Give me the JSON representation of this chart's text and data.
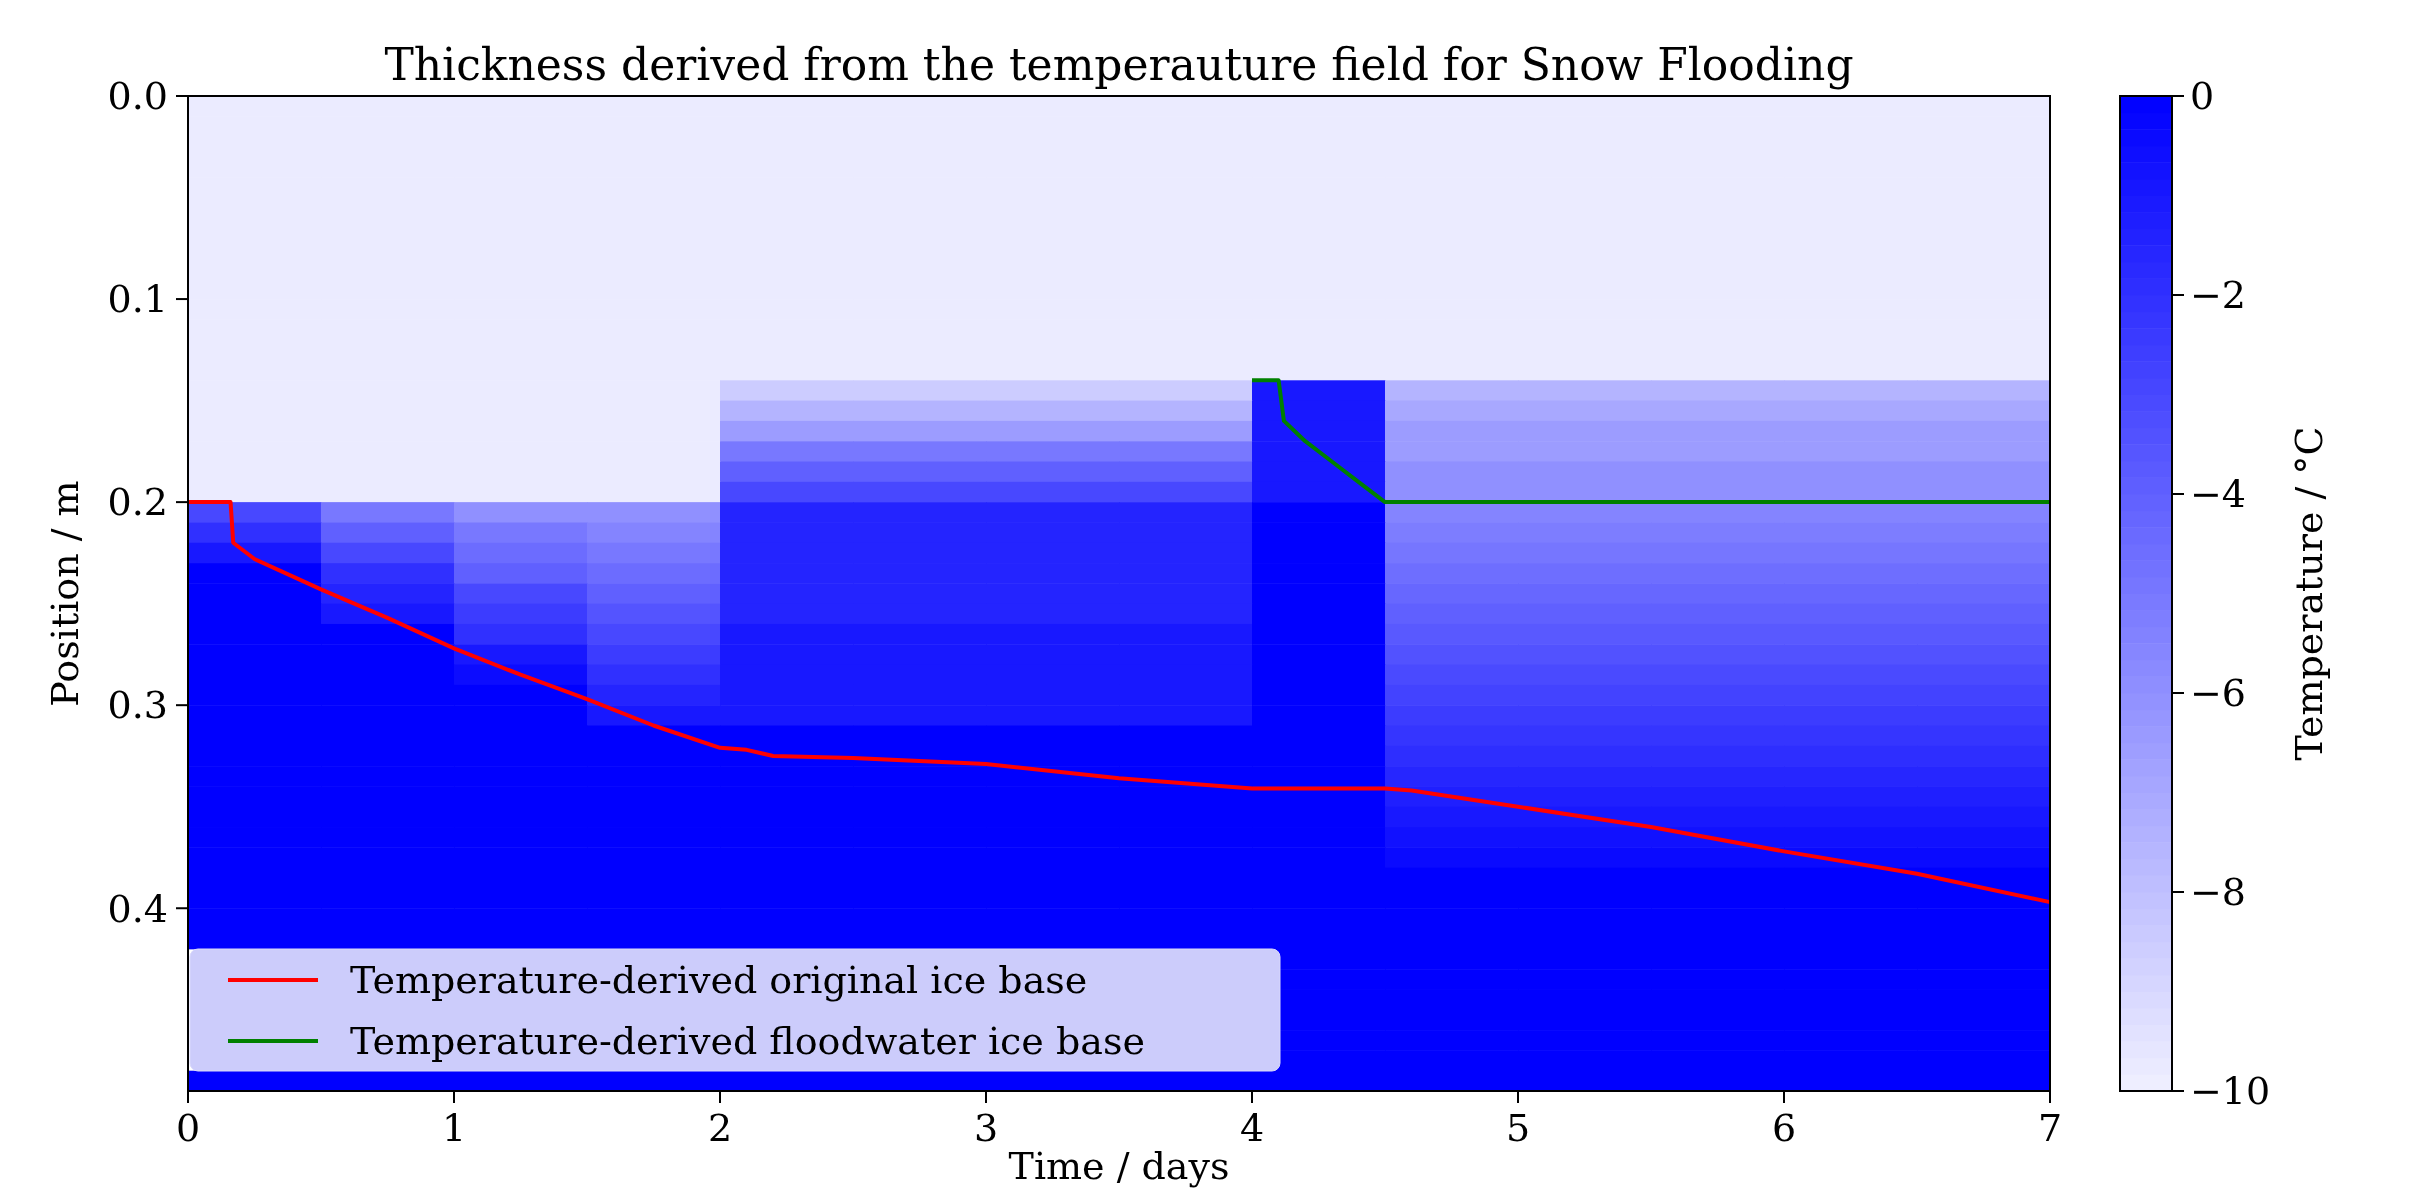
{
  "chart_data": {
    "type": "heatmap",
    "title": "Thickness derived from the temperauture field for Snow Flooding",
    "xlabel": "Time / days",
    "ylabel": "Position / m",
    "clabel": "Temperature / °C",
    "x": [
      0.25,
      0.75,
      1.25,
      1.75,
      2.25,
      2.75,
      3.25,
      3.75,
      4.25,
      4.75,
      5.25,
      5.75,
      6.25,
      6.75
    ],
    "xlim": [
      0,
      7
    ],
    "xticks": [
      0,
      1,
      2,
      3,
      4,
      5,
      6,
      7
    ],
    "ylim": [
      0.49,
      0
    ],
    "yticks": [
      {
        "value": 0,
        "label": "0.0"
      },
      0.1,
      0.2,
      0.3,
      0.4
    ],
    "clim": [
      -10,
      0
    ],
    "cticks": [
      {
        "value": 0,
        "label": "0"
      },
      {
        "value": -2,
        "label": "−2"
      },
      {
        "value": -4,
        "label": "−4"
      },
      {
        "value": -6,
        "label": "−6"
      },
      {
        "value": -8,
        "label": "−8"
      },
      {
        "value": -10,
        "label": "−10"
      }
    ],
    "cells": [
      [
        -9.8,
        -9.8,
        -9.8,
        -9.8,
        -9.8,
        -9.8,
        -9.8,
        -9.8,
        -9.8,
        -9.8,
        -9.8,
        -9.8,
        -9.8,
        -9.8
      ],
      [
        -9.8,
        -9.8,
        -9.8,
        -9.8,
        -9.8,
        -9.8,
        -9.8,
        -9.8,
        -9.8,
        -9.8,
        -9.8,
        -9.8,
        -9.8,
        -9.8
      ],
      [
        -9.8,
        -9.8,
        -9.8,
        -9.8,
        -9.8,
        -9.8,
        -9.8,
        -9.8,
        -9.8,
        -9.8,
        -9.8,
        -9.8,
        -9.8,
        -9.8
      ],
      [
        -9.8,
        -9.8,
        -9.8,
        -9.8,
        -9.8,
        -9.8,
        -9.8,
        -9.8,
        -9.8,
        -9.8,
        -9.8,
        -9.8,
        -9.8,
        -9.8
      ],
      [
        -9.8,
        -9.8,
        -9.8,
        -9.8,
        -9.8,
        -9.8,
        -9.8,
        -9.8,
        -9.8,
        -9.8,
        -9.8,
        -9.8,
        -9.8,
        -9.8
      ],
      [
        -9.8,
        -9.8,
        -9.8,
        -9.8,
        -9.8,
        -9.8,
        -9.8,
        -9.8,
        -9.8,
        -9.8,
        -9.8,
        -9.8,
        -9.8,
        -9.8
      ],
      [
        -9.8,
        -9.8,
        -9.8,
        -9.8,
        -9.8,
        -9.8,
        -9.8,
        -9.8,
        -9.8,
        -9.8,
        -9.8,
        -9.8,
        -9.8,
        -9.8
      ],
      [
        -9.8,
        -9.8,
        -9.8,
        -9.8,
        -9.8,
        -9.8,
        -9.8,
        -9.8,
        -9.8,
        -9.8,
        -9.8,
        -9.8,
        -9.8,
        -9.8
      ],
      [
        -9.8,
        -9.8,
        -9.8,
        -9.8,
        -9.8,
        -9.8,
        -9.8,
        -9.8,
        -9.8,
        -9.8,
        -9.8,
        -9.8,
        -9.8,
        -9.8
      ],
      [
        -9.8,
        -9.8,
        -9.8,
        -9.8,
        -9.8,
        -9.8,
        -9.8,
        -9.8,
        -9.8,
        -9.8,
        -9.8,
        -9.8,
        -9.8,
        -9.8
      ],
      [
        -9.8,
        -9.8,
        -9.8,
        -9.8,
        -9.8,
        -9.8,
        -9.8,
        -9.8,
        -9.8,
        -9.8,
        -9.8,
        -9.8,
        -9.8,
        -9.8
      ],
      [
        -9.8,
        -9.8,
        -9.8,
        -9.8,
        -9.8,
        -9.8,
        -9.8,
        -9.8,
        -9.8,
        -9.8,
        -9.8,
        -9.8,
        -9.8,
        -9.8
      ],
      [
        -9.8,
        -9.8,
        -9.8,
        -9.8,
        -9.8,
        -9.8,
        -9.8,
        -9.8,
        -9.8,
        -9.8,
        -9.8,
        -9.8,
        -9.8,
        -9.8
      ],
      [
        -9.8,
        -9.8,
        -9.8,
        -9.8,
        -9.8,
        -9.8,
        -9.8,
        -9.8,
        -9.8,
        -9.8,
        -9.8,
        -9.8,
        -9.8,
        -9.8
      ],
      [
        -9.8,
        -9.8,
        -9.8,
        -9.8,
        -8.5,
        -8.5,
        -8.5,
        -8.5,
        -1,
        -7.5,
        -7.5,
        -7.5,
        -7.5,
        -7.5
      ],
      [
        -9.8,
        -9.8,
        -9.8,
        -9.8,
        -7.5,
        -7.5,
        -7.5,
        -7.5,
        -1,
        -7,
        -7,
        -7,
        -7,
        -7
      ],
      [
        -9.8,
        -9.8,
        -9.8,
        -9.8,
        -6.5,
        -6.5,
        -6.5,
        -6.5,
        -1,
        -6.5,
        -6.5,
        -6.5,
        -6.5,
        -6.5
      ],
      [
        -9.8,
        -9.8,
        -9.8,
        -9.8,
        -5,
        -5,
        -5,
        -5,
        -1,
        -6.5,
        -6.5,
        -6.5,
        -6.5,
        -6.5
      ],
      [
        -9.8,
        -9.8,
        -9.8,
        -9.8,
        -4,
        -4,
        -4,
        -4,
        -1,
        -6,
        -6,
        -6,
        -6,
        -6
      ],
      [
        -9.8,
        -9.8,
        -9.8,
        -9.8,
        -3,
        -3,
        -3,
        -3,
        -1,
        -6,
        -6,
        -6,
        -6,
        -6
      ],
      [
        -3,
        -5,
        -6,
        -6,
        -1.5,
        -1.5,
        -1.5,
        -1.5,
        0,
        -5.5,
        -5.5,
        -5.5,
        -5.5,
        -5.5
      ],
      [
        -2,
        -4,
        -5,
        -5.5,
        -1.5,
        -1.5,
        -1.5,
        -1.5,
        0,
        -5.2,
        -5.2,
        -5.2,
        -5.2,
        -5.2
      ],
      [
        -1,
        -3,
        -4.5,
        -5,
        -1.5,
        -1.5,
        -1.5,
        -1.5,
        0,
        -4.9,
        -4.9,
        -4.9,
        -4.9,
        -4.9
      ],
      [
        0,
        -2,
        -4,
        -4.5,
        -1.5,
        -1.5,
        -1.5,
        -1.5,
        0,
        -4.6,
        -4.6,
        -4.6,
        -4.6,
        -4.6
      ],
      [
        0,
        -1.5,
        -3,
        -4,
        -1.5,
        -1.5,
        -1.5,
        -1.5,
        0,
        -4.3,
        -4.3,
        -4.3,
        -4.3,
        -4.3
      ],
      [
        0,
        -1,
        -2.5,
        -3.5,
        -1.5,
        -1.5,
        -1.5,
        -1.5,
        0,
        -4,
        -4,
        -4,
        -4,
        -4
      ],
      [
        0,
        0,
        -2,
        -3,
        -1,
        -1,
        -1,
        -1,
        0,
        -3.7,
        -3.7,
        -3.7,
        -3.7,
        -3.7
      ],
      [
        0,
        0,
        -1,
        -2.5,
        -1,
        -1,
        -1,
        -1,
        0,
        -3.4,
        -3.4,
        -3.4,
        -3.4,
        -3.4
      ],
      [
        0,
        0,
        -0.5,
        -2,
        -1,
        -1,
        -1,
        -1,
        0,
        -3.1,
        -3.1,
        -3.1,
        -3.1,
        -3.1
      ],
      [
        0,
        0,
        0,
        -1.5,
        -1,
        -1,
        -1,
        -1,
        0,
        -2.8,
        -2.8,
        -2.8,
        -2.8,
        -2.8
      ],
      [
        0,
        0,
        0,
        -1,
        -1,
        -1,
        -1,
        -1,
        0,
        -2.5,
        -2.5,
        -2.5,
        -2.5,
        -2.5
      ],
      [
        0,
        0,
        0,
        0,
        0,
        0,
        0,
        0,
        0,
        -2.2,
        -2.2,
        -2.2,
        -2.2,
        -2.2
      ],
      [
        0,
        0,
        0,
        0,
        0,
        0,
        0,
        0,
        0,
        -1.9,
        -1.9,
        -1.9,
        -1.9,
        -1.9
      ],
      [
        0,
        0,
        0,
        0,
        0,
        0,
        0,
        0,
        0,
        -1.6,
        -1.6,
        -1.6,
        -1.6,
        -1.6
      ],
      [
        0,
        0,
        0,
        0,
        0,
        0,
        0,
        0,
        0,
        -1.3,
        -1.3,
        -1.3,
        -1.3,
        -1.3
      ],
      [
        0,
        0,
        0,
        0,
        0,
        0,
        0,
        0,
        0,
        -1,
        -1,
        -1,
        -1,
        -1
      ],
      [
        0,
        0,
        0,
        0,
        0,
        0,
        0,
        0,
        0,
        -0.7,
        -0.7,
        -0.7,
        -0.7,
        -0.7
      ],
      [
        0,
        0,
        0,
        0,
        0,
        0,
        0,
        0,
        0,
        -0.4,
        -0.4,
        -0.4,
        -0.4,
        -0.4
      ],
      [
        0,
        0,
        0,
        0,
        0,
        0,
        0,
        0,
        0,
        0,
        0,
        0,
        0,
        0
      ],
      [
        0,
        0,
        0,
        0,
        0,
        0,
        0,
        0,
        0,
        0,
        0,
        0,
        0,
        0
      ],
      [
        0,
        0,
        0,
        0,
        0,
        0,
        0,
        0,
        0,
        0,
        0,
        0,
        0,
        0
      ],
      [
        0,
        0,
        0,
        0,
        0,
        0,
        0,
        0,
        0,
        0,
        0,
        0,
        0,
        0
      ],
      [
        null,
        null,
        null,
        null,
        null,
        null,
        null,
        null,
        0,
        0,
        0,
        0,
        0,
        0
      ],
      [
        null,
        null,
        null,
        null,
        null,
        null,
        null,
        null,
        0,
        0,
        0,
        0,
        0,
        0
      ],
      [
        null,
        null,
        null,
        null,
        null,
        null,
        null,
        null,
        0,
        0,
        0,
        0,
        0,
        0
      ],
      [
        null,
        null,
        null,
        null,
        null,
        null,
        null,
        null,
        0,
        0,
        0,
        0,
        0,
        0
      ],
      [
        null,
        null,
        null,
        null,
        null,
        null,
        null,
        null,
        0,
        0,
        0,
        0,
        0,
        0
      ],
      [
        null,
        null,
        null,
        null,
        null,
        null,
        null,
        null,
        0,
        0,
        0,
        0,
        0,
        0
      ],
      [
        0,
        0,
        0,
        0,
        0,
        0,
        0,
        0,
        0,
        0,
        0,
        0,
        0,
        0
      ]
    ],
    "series": [
      {
        "type": "line",
        "name": "Temperature-derived original ice base",
        "color": "#ff0000",
        "x": [
          0,
          0.16,
          0.17,
          0.25,
          0.5,
          0.75,
          1,
          1.25,
          1.5,
          1.75,
          2,
          2.1,
          2.2,
          2.5,
          3,
          3.5,
          4,
          4.5,
          4.6,
          5,
          5.5,
          6,
          6.5,
          7
        ],
        "values": [
          0.2,
          0.2,
          0.22,
          0.228,
          0.243,
          0.257,
          0.272,
          0.285,
          0.297,
          0.31,
          0.321,
          0.322,
          0.325,
          0.326,
          0.329,
          0.336,
          0.341,
          0.341,
          0.342,
          0.35,
          0.36,
          0.372,
          0.383,
          0.397
        ]
      },
      {
        "type": "line",
        "name": "Temperature-derived floodwater ice base",
        "color": "#008000",
        "x": [
          4,
          4.1,
          4.12,
          4.2,
          4.3,
          4.4,
          4.5,
          7
        ],
        "values": [
          0.14,
          0.14,
          0.16,
          0.17,
          0.18,
          0.19,
          0.2,
          0.2
        ]
      }
    ],
    "legend": "bottom left"
  }
}
